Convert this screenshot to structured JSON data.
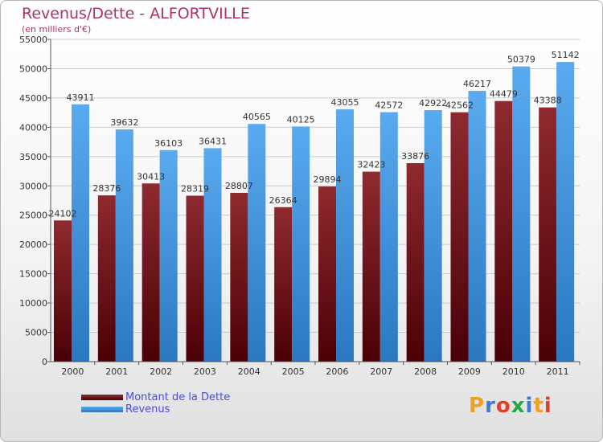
{
  "colors": {
    "debt": "#6e1418",
    "revenue": "#3d8fd8",
    "accent": "#b0306a"
  },
  "logo": {
    "letters": [
      "P",
      "r",
      "o",
      "x",
      "i",
      "t",
      "i"
    ],
    "colors": [
      "#f0a020",
      "#3a7bd5",
      "#e0402a",
      "#2aa840",
      "#3a7bd5",
      "#f0a020",
      "#e0402a"
    ]
  },
  "chart_data": {
    "type": "bar",
    "title": "Revenus/Dette - ALFORTVILLE",
    "subtitle": "(en milliers d'€)",
    "categories": [
      "2000",
      "2001",
      "2002",
      "2003",
      "2004",
      "2005",
      "2006",
      "2007",
      "2008",
      "2009",
      "2010",
      "2011"
    ],
    "series": [
      {
        "name": "Montant de la Dette",
        "values": [
          24102,
          28376,
          30413,
          28319,
          28807,
          26364,
          29894,
          32423,
          33876,
          42562,
          44479,
          43388
        ],
        "labels": [
          "24102",
          "28376",
          "30413",
          "28319",
          "28807",
          "26364",
          "29894",
          "32423",
          "33876",
          "42562",
          "44479",
          "43388"
        ]
      },
      {
        "name": "Revenus",
        "values": [
          43911,
          39632,
          36103,
          36431,
          40565,
          40125,
          43055,
          42572,
          42922,
          46217,
          50379,
          51142
        ],
        "labels": [
          "43911",
          "39632",
          "36103",
          "36431",
          "40565",
          "40125",
          "43055",
          "42572",
          "42922",
          "46217",
          "50379",
          "51142"
        ]
      }
    ],
    "ylim": [
      0,
      55000
    ],
    "yticks": [
      "0",
      "5000",
      "10000",
      "15000",
      "20000",
      "25000",
      "30000",
      "35000",
      "40000",
      "45000",
      "50000",
      "55000"
    ],
    "grid": true,
    "legend_position": "bottom-left"
  }
}
